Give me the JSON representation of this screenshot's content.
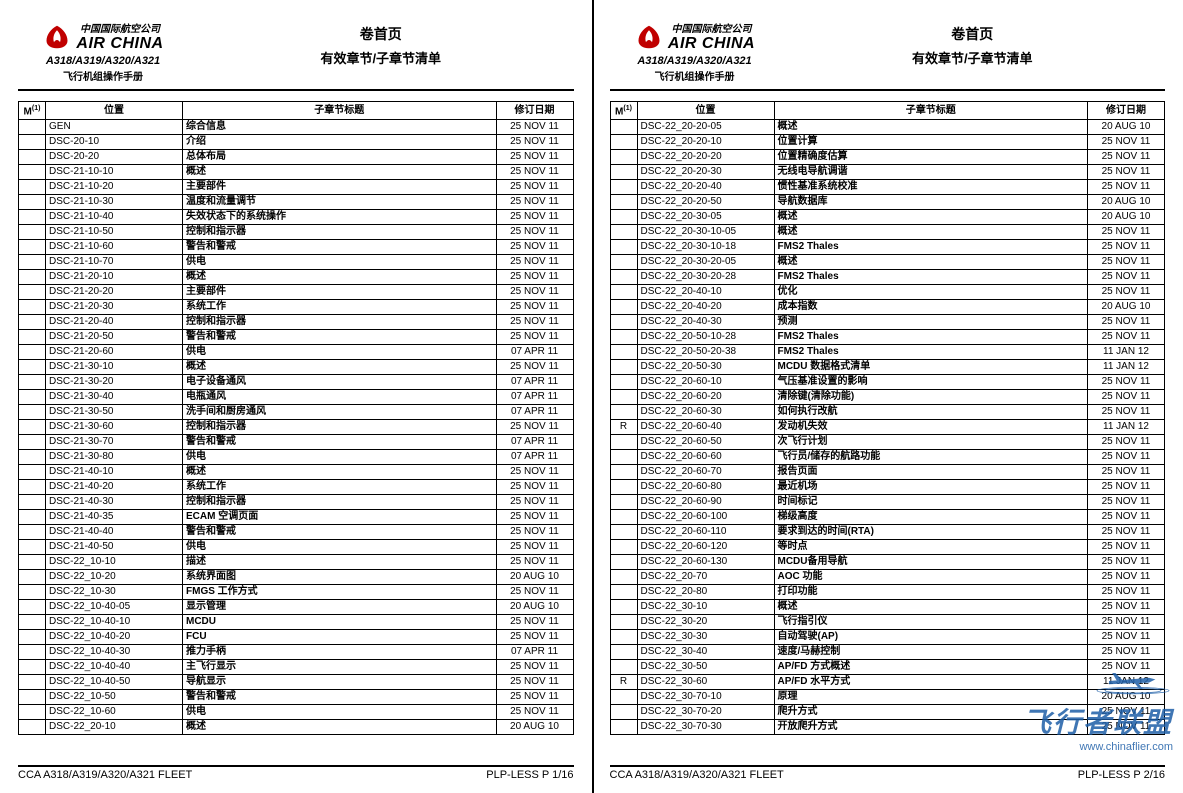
{
  "header": {
    "brand_cn": "中国国际航空公司",
    "brand_en": "AIR CHINA",
    "model": "A318/A319/A320/A321",
    "manual": "飞行机组操作手册",
    "title1": "卷首页",
    "title2": "有效章节/子章节清单",
    "logo_color": "#c00000"
  },
  "columns": {
    "m": "M",
    "m_sup": "(1)",
    "loc": "位置",
    "title": "子章节标题",
    "date": "修订日期"
  },
  "footer": {
    "fleet": "CCA A318/A319/A320/A321 FLEET",
    "p1": "PLP-LESS P 1/16",
    "p2": "PLP-LESS P 2/16"
  },
  "watermark": {
    "text": "飞行者联盟",
    "url": "www.chinaflier.com",
    "color": "#1e5fa8"
  },
  "page1_rows": [
    {
      "m": "",
      "loc": "GEN",
      "title": "综合信息",
      "date": "25 NOV 11",
      "b": true
    },
    {
      "m": "",
      "loc": "DSC-20-10",
      "title": "介绍",
      "date": "25 NOV 11",
      "b": true
    },
    {
      "m": "",
      "loc": "DSC-20-20",
      "title": "总体布局",
      "date": "25 NOV 11",
      "b": true
    },
    {
      "m": "",
      "loc": "DSC-21-10-10",
      "title": "概述",
      "date": "25 NOV 11",
      "b": true
    },
    {
      "m": "",
      "loc": "DSC-21-10-20",
      "title": "主要部件",
      "date": "25 NOV 11",
      "b": true
    },
    {
      "m": "",
      "loc": "DSC-21-10-30",
      "title": "温度和流量调节",
      "date": "25 NOV 11",
      "b": true
    },
    {
      "m": "",
      "loc": "DSC-21-10-40",
      "title": "失效状态下的系统操作",
      "date": "25 NOV 11",
      "b": true
    },
    {
      "m": "",
      "loc": "DSC-21-10-50",
      "title": "控制和指示器",
      "date": "25 NOV 11",
      "b": true
    },
    {
      "m": "",
      "loc": "DSC-21-10-60",
      "title": "警告和警戒",
      "date": "25 NOV 11",
      "b": true
    },
    {
      "m": "",
      "loc": "DSC-21-10-70",
      "title": "供电",
      "date": "25 NOV 11",
      "b": true
    },
    {
      "m": "",
      "loc": "DSC-21-20-10",
      "title": "概述",
      "date": "25 NOV 11",
      "b": true
    },
    {
      "m": "",
      "loc": "DSC-21-20-20",
      "title": "主要部件",
      "date": "25 NOV 11",
      "b": true
    },
    {
      "m": "",
      "loc": "DSC-21-20-30",
      "title": "系统工作",
      "date": "25 NOV 11",
      "b": true
    },
    {
      "m": "",
      "loc": "DSC-21-20-40",
      "title": "控制和指示器",
      "date": "25 NOV 11",
      "b": true
    },
    {
      "m": "",
      "loc": "DSC-21-20-50",
      "title": "警告和警戒",
      "date": "25 NOV 11",
      "b": true
    },
    {
      "m": "",
      "loc": "DSC-21-20-60",
      "title": "供电",
      "date": "07 APR 11",
      "b": true
    },
    {
      "m": "",
      "loc": "DSC-21-30-10",
      "title": "概述",
      "date": "25 NOV 11",
      "b": true
    },
    {
      "m": "",
      "loc": "DSC-21-30-20",
      "title": "电子设备通风",
      "date": "07 APR 11",
      "b": true
    },
    {
      "m": "",
      "loc": "DSC-21-30-40",
      "title": "电瓶通风",
      "date": "07 APR 11",
      "b": true
    },
    {
      "m": "",
      "loc": "DSC-21-30-50",
      "title": "洗手间和厨房通风",
      "date": "07 APR 11",
      "b": true
    },
    {
      "m": "",
      "loc": "DSC-21-30-60",
      "title": "控制和指示器",
      "date": "25 NOV 11",
      "b": true
    },
    {
      "m": "",
      "loc": "DSC-21-30-70",
      "title": "警告和警戒",
      "date": "07 APR 11",
      "b": true
    },
    {
      "m": "",
      "loc": "DSC-21-30-80",
      "title": "供电",
      "date": "07 APR 11",
      "b": true
    },
    {
      "m": "",
      "loc": "DSC-21-40-10",
      "title": "概述",
      "date": "25 NOV 11",
      "b": true
    },
    {
      "m": "",
      "loc": "DSC-21-40-20",
      "title": "系统工作",
      "date": "25 NOV 11",
      "b": true
    },
    {
      "m": "",
      "loc": "DSC-21-40-30",
      "title": "控制和指示器",
      "date": "25 NOV 11",
      "b": true
    },
    {
      "m": "",
      "loc": "DSC-21-40-35",
      "title": "ECAM 空调页面",
      "date": "25 NOV 11",
      "b": true
    },
    {
      "m": "",
      "loc": "DSC-21-40-40",
      "title": "警告和警戒",
      "date": "25 NOV 11",
      "b": true
    },
    {
      "m": "",
      "loc": "DSC-21-40-50",
      "title": "供电",
      "date": "25 NOV 11",
      "b": true
    },
    {
      "m": "",
      "loc": "DSC-22_10-10",
      "title": "描述",
      "date": "25 NOV 11",
      "b": true
    },
    {
      "m": "",
      "loc": "DSC-22_10-20",
      "title": "系统界面图",
      "date": "20 AUG 10",
      "b": true
    },
    {
      "m": "",
      "loc": "DSC-22_10-30",
      "title": "FMGS  工作方式",
      "date": "25 NOV 11",
      "b": true
    },
    {
      "m": "",
      "loc": "DSC-22_10-40-05",
      "title": "显示管理",
      "date": "20 AUG 10",
      "b": true
    },
    {
      "m": "",
      "loc": "DSC-22_10-40-10",
      "title": "MCDU",
      "date": "25 NOV 11",
      "b": true
    },
    {
      "m": "",
      "loc": "DSC-22_10-40-20",
      "title": "FCU",
      "date": "25 NOV 11",
      "b": true
    },
    {
      "m": "",
      "loc": "DSC-22_10-40-30",
      "title": "推力手柄",
      "date": "07 APR 11",
      "b": true
    },
    {
      "m": "",
      "loc": "DSC-22_10-40-40",
      "title": "主飞行显示",
      "date": "25 NOV 11",
      "b": true
    },
    {
      "m": "",
      "loc": "DSC-22_10-40-50",
      "title": "导航显示",
      "date": "25 NOV 11",
      "b": true
    },
    {
      "m": "",
      "loc": "DSC-22_10-50",
      "title": "警告和警戒",
      "date": "25 NOV 11",
      "b": true
    },
    {
      "m": "",
      "loc": "DSC-22_10-60",
      "title": "供电",
      "date": "25 NOV 11",
      "b": true
    },
    {
      "m": "",
      "loc": "DSC-22_20-10",
      "title": "概述",
      "date": "20 AUG 10",
      "b": true
    }
  ],
  "page2_rows": [
    {
      "m": "",
      "loc": "DSC-22_20-20-05",
      "title": "概述",
      "date": "20 AUG 10",
      "b": true
    },
    {
      "m": "",
      "loc": "DSC-22_20-20-10",
      "title": "位置计算",
      "date": "25 NOV 11",
      "b": true
    },
    {
      "m": "",
      "loc": "DSC-22_20-20-20",
      "title": "位置精确度估算",
      "date": "25 NOV 11",
      "b": true
    },
    {
      "m": "",
      "loc": "DSC-22_20-20-30",
      "title": "无线电导航调谐",
      "date": "25 NOV 11",
      "b": true
    },
    {
      "m": "",
      "loc": "DSC-22_20-20-40",
      "title": "惯性基准系统校准",
      "date": "25 NOV 11",
      "b": true
    },
    {
      "m": "",
      "loc": "DSC-22_20-20-50",
      "title": "导航数据库",
      "date": "20 AUG 10",
      "b": true
    },
    {
      "m": "",
      "loc": "DSC-22_20-30-05",
      "title": "概述",
      "date": "20 AUG 10",
      "b": true
    },
    {
      "m": "",
      "loc": "DSC-22_20-30-10-05",
      "title": "概述",
      "date": "25 NOV 11",
      "b": true
    },
    {
      "m": "",
      "loc": "DSC-22_20-30-10-18",
      "title": "FMS2 Thales",
      "date": "25 NOV 11",
      "b": true
    },
    {
      "m": "",
      "loc": "DSC-22_20-30-20-05",
      "title": "概述",
      "date": "25 NOV 11",
      "b": true
    },
    {
      "m": "",
      "loc": "DSC-22_20-30-20-28",
      "title": "FMS2 Thales",
      "date": "25 NOV 11",
      "b": true
    },
    {
      "m": "",
      "loc": "DSC-22_20-40-10",
      "title": "优化",
      "date": "25 NOV 11",
      "b": true
    },
    {
      "m": "",
      "loc": "DSC-22_20-40-20",
      "title": "成本指数",
      "date": "20 AUG 10",
      "b": true
    },
    {
      "m": "",
      "loc": "DSC-22_20-40-30",
      "title": "预测",
      "date": "25 NOV 11",
      "b": true
    },
    {
      "m": "",
      "loc": "DSC-22_20-50-10-28",
      "title": "FMS2 Thales",
      "date": "25 NOV 11",
      "b": true
    },
    {
      "m": "",
      "loc": "DSC-22_20-50-20-38",
      "title": "FMS2 Thales",
      "date": "11 JAN 12",
      "b": true
    },
    {
      "m": "",
      "loc": "DSC-22_20-50-30",
      "title": "MCDU 数据格式清单",
      "date": "11 JAN 12",
      "b": true
    },
    {
      "m": "",
      "loc": "DSC-22_20-60-10",
      "title": "气压基准设置的影响",
      "date": "25 NOV 11",
      "b": true
    },
    {
      "m": "",
      "loc": "DSC-22_20-60-20",
      "title": "清除键(清除功能)",
      "date": "25 NOV 11",
      "b": true
    },
    {
      "m": "",
      "loc": "DSC-22_20-60-30",
      "title": "如何执行改航",
      "date": "25 NOV 11",
      "b": true
    },
    {
      "m": "R",
      "loc": "DSC-22_20-60-40",
      "title": "发动机失效",
      "date": "11 JAN 12",
      "b": true
    },
    {
      "m": "",
      "loc": "DSC-22_20-60-50",
      "title": "次飞行计划",
      "date": "25 NOV 11",
      "b": true
    },
    {
      "m": "",
      "loc": "DSC-22_20-60-60",
      "title": "飞行员/储存的航路功能",
      "date": "25 NOV 11",
      "b": true
    },
    {
      "m": "",
      "loc": "DSC-22_20-60-70",
      "title": "报告页面",
      "date": "25 NOV 11",
      "b": true
    },
    {
      "m": "",
      "loc": "DSC-22_20-60-80",
      "title": "最近机场",
      "date": "25 NOV 11",
      "b": true
    },
    {
      "m": "",
      "loc": "DSC-22_20-60-90",
      "title": "时间标记",
      "date": "25 NOV 11",
      "b": true
    },
    {
      "m": "",
      "loc": "DSC-22_20-60-100",
      "title": "梯级高度",
      "date": "25 NOV 11",
      "b": true
    },
    {
      "m": "",
      "loc": "DSC-22_20-60-110",
      "title": "要求到达的时间(RTA)",
      "date": "25 NOV 11",
      "b": true
    },
    {
      "m": "",
      "loc": "DSC-22_20-60-120",
      "title": "等时点",
      "date": "25 NOV 11",
      "b": true
    },
    {
      "m": "",
      "loc": "DSC-22_20-60-130",
      "title": "MCDU备用导航",
      "date": "25 NOV 11",
      "b": true
    },
    {
      "m": "",
      "loc": "DSC-22_20-70",
      "title": "AOC 功能",
      "date": "25 NOV 11",
      "b": true
    },
    {
      "m": "",
      "loc": "DSC-22_20-80",
      "title": "打印功能",
      "date": "25 NOV 11",
      "b": true
    },
    {
      "m": "",
      "loc": "DSC-22_30-10",
      "title": "概述",
      "date": "25 NOV 11",
      "b": true
    },
    {
      "m": "",
      "loc": "DSC-22_30-20",
      "title": "飞行指引仪",
      "date": "25 NOV 11",
      "b": true
    },
    {
      "m": "",
      "loc": "DSC-22_30-30",
      "title": "自动驾驶(AP)",
      "date": "25 NOV 11",
      "b": true
    },
    {
      "m": "",
      "loc": "DSC-22_30-40",
      "title": "速度/马赫控制",
      "date": "25 NOV 11",
      "b": true
    },
    {
      "m": "",
      "loc": "DSC-22_30-50",
      "title": "AP/FD 方式概述",
      "date": "25 NOV 11",
      "b": true
    },
    {
      "m": "R",
      "loc": "DSC-22_30-60",
      "title": "AP/FD 水平方式",
      "date": "11 JAN 12",
      "b": true
    },
    {
      "m": "",
      "loc": "DSC-22_30-70-10",
      "title": "原理",
      "date": "20 AUG 10",
      "b": true
    },
    {
      "m": "",
      "loc": "DSC-22_30-70-20",
      "title": "爬升方式",
      "date": "25 NOV 11",
      "b": true
    },
    {
      "m": "",
      "loc": "DSC-22_30-70-30",
      "title": "开放爬升方式",
      "date": "25 NOV 11",
      "b": true
    }
  ]
}
